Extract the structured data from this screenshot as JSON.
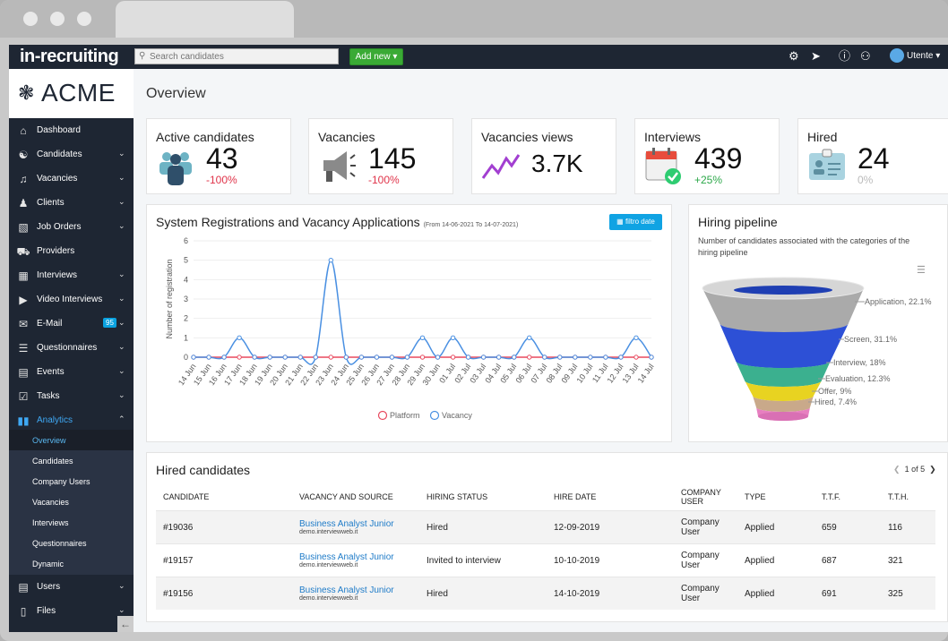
{
  "topbar": {
    "logo": "in-recruiting",
    "search_placeholder": "Search candidates",
    "add_new": "Add new ▾",
    "user": "Utente",
    "user_chev": "▾"
  },
  "brand": {
    "name": "ACME"
  },
  "sidebar": {
    "items": [
      {
        "label": "Dashboard",
        "icon": "home-icon"
      },
      {
        "label": "Candidates",
        "icon": "candidate-icon"
      },
      {
        "label": "Vacancies",
        "icon": "megaphone-icon"
      },
      {
        "label": "Clients",
        "icon": "client-icon"
      },
      {
        "label": "Job Orders",
        "icon": "briefcase-icon"
      },
      {
        "label": "Providers",
        "icon": "truck-icon"
      },
      {
        "label": "Interviews",
        "icon": "calendar-icon"
      },
      {
        "label": "Video Interviews",
        "icon": "video-icon"
      },
      {
        "label": "E-Mail",
        "icon": "mail-icon",
        "badge": "95"
      },
      {
        "label": "Questionnaires",
        "icon": "questionnaire-icon"
      },
      {
        "label": "Events",
        "icon": "event-icon"
      },
      {
        "label": "Tasks",
        "icon": "task-icon"
      },
      {
        "label": "Analytics",
        "icon": "analytics-icon"
      }
    ],
    "sub": [
      "Overview",
      "Candidates",
      "Company Users",
      "Vacancies",
      "Interviews",
      "Questionnaires",
      "Dynamic"
    ],
    "bottom": [
      "Users",
      "Files"
    ]
  },
  "page": {
    "title": "Overview"
  },
  "kpis": [
    {
      "label": "Active candidates",
      "value": "43",
      "delta": "-100%",
      "delta_color": "#e0344a"
    },
    {
      "label": "Vacancies",
      "value": "145",
      "delta": "-100%",
      "delta_color": "#e0344a"
    },
    {
      "label": "Vacancies views",
      "value": "3.7K",
      "delta": "",
      "delta_color": "#333"
    },
    {
      "label": "Interviews",
      "value": "439",
      "delta": "+25%",
      "delta_color": "#2da84a"
    },
    {
      "label": "Hired",
      "value": "24",
      "delta": "0%",
      "delta_color": "#bbb"
    }
  ],
  "registration_chart": {
    "title": "System Registrations and Vacancy Applications",
    "subtitle": "(From 14-06-2021 To 14-07-2021)",
    "filter_button": "filtro date"
  },
  "chart_data": {
    "type": "line",
    "title": "System Registrations and Vacancy Applications",
    "subtitle": "(From 14-06-2021 To 14-07-2021)",
    "ylabel": "Number of registration",
    "ylim": [
      0,
      6
    ],
    "yticks": [
      0,
      1,
      2,
      3,
      4,
      5,
      6
    ],
    "categories": [
      "14 Jun",
      "15 Jun",
      "16 Jun",
      "17 Jun",
      "18 Jun",
      "19 Jun",
      "20 Jun",
      "21 Jun",
      "22 Jun",
      "23 Jun",
      "24 Jun",
      "25 Jun",
      "26 Jun",
      "27 Jun",
      "28 Jun",
      "29 Jun",
      "30 Jun",
      "01 Jul",
      "02 Jul",
      "03 Jul",
      "04 Jul",
      "05 Jul",
      "06 Jul",
      "07 Jul",
      "08 Jul",
      "09 Jul",
      "10 Jul",
      "11 Jul",
      "12 Jul",
      "13 Jul",
      "14 Jul"
    ],
    "series": [
      {
        "name": "Platform",
        "color": "#e84a5f",
        "values": [
          0,
          0,
          0,
          0,
          0,
          0,
          0,
          0,
          0,
          0,
          0,
          0,
          0,
          0,
          0,
          0,
          0,
          0,
          0,
          0,
          0,
          0,
          0,
          0,
          0,
          0,
          0,
          0,
          0,
          0,
          0
        ]
      },
      {
        "name": "Vacancy",
        "color": "#4a90e2",
        "values": [
          0,
          0,
          0,
          1,
          0,
          0,
          0,
          0,
          0,
          5,
          0,
          0,
          0,
          0,
          0,
          1,
          0,
          1,
          0,
          0,
          0,
          0,
          1,
          0,
          0,
          0,
          0,
          0,
          0,
          1,
          0
        ]
      }
    ],
    "legend": "bottom",
    "grid": true
  },
  "pipeline": {
    "title": "Hiring pipeline",
    "subtitle": "Number of candidates associated with the categories of the hiring pipeline",
    "stages": [
      {
        "label": "Application, 22.1%",
        "color": "#bfbfbf"
      },
      {
        "label": "Screen, 31.1%",
        "color": "#2d50d6"
      },
      {
        "label": "Interview, 18%",
        "color": "#3bb08f"
      },
      {
        "label": "Evaluation, 12.3%",
        "color": "#e8d321"
      },
      {
        "label": "Offer, 9%",
        "color": "#c9a98a"
      },
      {
        "label": "Hired, 7.4%",
        "color": "#e77fc0"
      }
    ]
  },
  "hired": {
    "title": "Hired candidates",
    "pager": "1 of 5",
    "columns": [
      "CANDIDATE",
      "VACANCY AND SOURCE",
      "HIRING STATUS",
      "HIRE DATE",
      "COMPANY USER",
      "TYPE",
      "T.T.F.",
      "T.T.H."
    ],
    "rows": [
      {
        "candidate": "#19036",
        "vacancy": "Business Analyst Junior",
        "source": "demo.interviewweb.it",
        "status": "Hired",
        "date": "12-09-2019",
        "user": "Company User",
        "type": "Applied",
        "ttf": "659",
        "tth": "116"
      },
      {
        "candidate": "#19157",
        "vacancy": "Business Analyst Junior",
        "source": "demo.interviewweb.it",
        "status": "Invited to interview",
        "date": "10-10-2019",
        "user": "Company User",
        "type": "Applied",
        "ttf": "687",
        "tth": "321"
      },
      {
        "candidate": "#19156",
        "vacancy": "Business Analyst Junior",
        "source": "demo.interviewweb.it",
        "status": "Hired",
        "date": "14-10-2019",
        "user": "Company User",
        "type": "Applied",
        "ttf": "691",
        "tth": "325"
      }
    ]
  }
}
